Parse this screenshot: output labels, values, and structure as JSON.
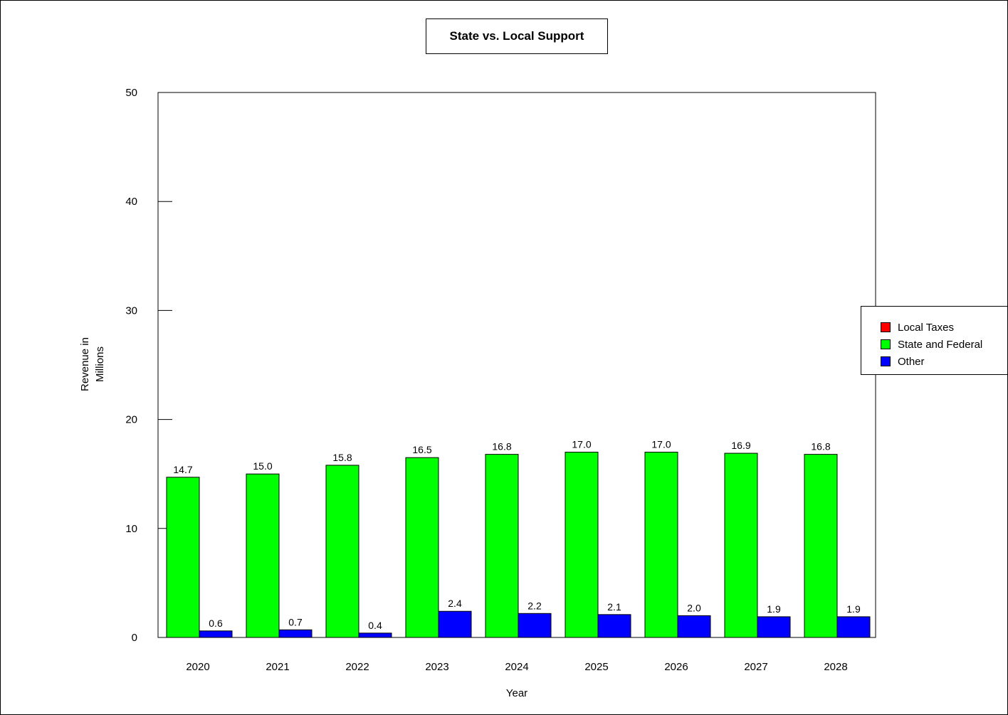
{
  "chart_data": {
    "type": "bar",
    "title": "State vs. Local Support",
    "xlabel": "Year",
    "ylabel": "Revenue in\nMillions",
    "ylim": [
      0,
      50
    ],
    "yticks": [
      "0",
      "10",
      "20",
      "30",
      "40",
      "50"
    ],
    "categories": [
      "2020",
      "2021",
      "2022",
      "2023",
      "2024",
      "2025",
      "2026",
      "2027",
      "2028"
    ],
    "series": [
      {
        "name": "Local Taxes",
        "color": "#ff0000",
        "values": [
          0,
          0,
          0,
          0,
          0,
          0,
          0,
          0,
          0
        ],
        "labels": [
          "",
          "",
          "",
          "",
          "",
          "",
          "",
          "",
          ""
        ]
      },
      {
        "name": "State and Federal",
        "color": "#00ff00",
        "values": [
          14.7,
          15.0,
          15.8,
          16.5,
          16.8,
          17.0,
          17.0,
          16.9,
          16.8
        ],
        "labels": [
          "14.7",
          "15.0",
          "15.8",
          "16.5",
          "16.8",
          "17.0",
          "17.0",
          "16.9",
          "16.8"
        ]
      },
      {
        "name": "Other",
        "color": "#0000ff",
        "values": [
          0.6,
          0.7,
          0.4,
          2.4,
          2.2,
          2.1,
          2.0,
          1.9,
          1.9
        ],
        "labels": [
          "0.6",
          "0.7",
          "0.4",
          "2.4",
          "2.2",
          "2.1",
          "2.0",
          "1.9",
          "1.9"
        ]
      }
    ],
    "legend_position": "right",
    "grid": false
  }
}
